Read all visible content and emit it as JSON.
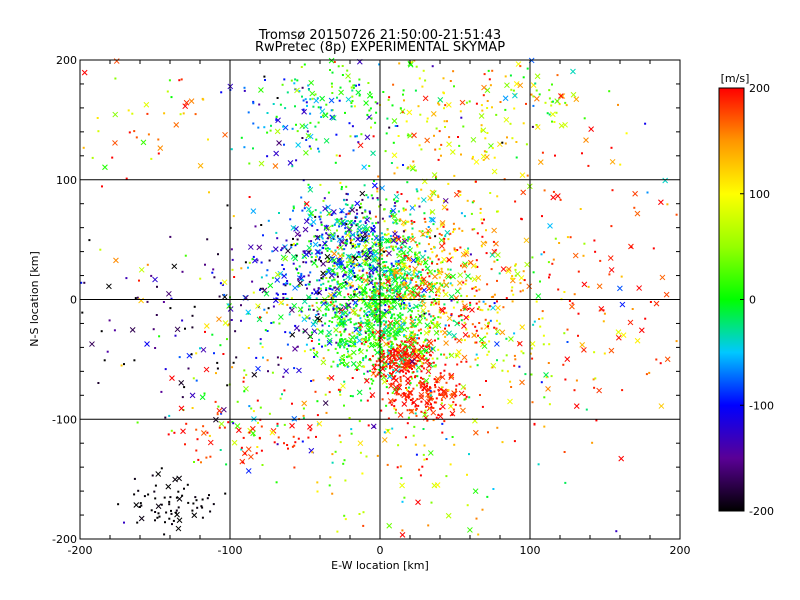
{
  "chart_data": {
    "type": "scatter",
    "title": "Tromsø 20150726 21:50:00-21:51:43",
    "subtitle": "RwPretec (8p) EXPERIMENTAL SKYMAP",
    "xlabel": "E-W location [km]",
    "ylabel": "N-S location [km]",
    "xlim": [
      -200,
      200
    ],
    "ylim": [
      -200,
      200
    ],
    "xticks": [
      "-200",
      "-100",
      "0",
      "100",
      "200"
    ],
    "yticks": [
      "-200",
      "-100",
      "0",
      "100",
      "200"
    ],
    "grid": true,
    "colorbar": {
      "label": "[m/s]",
      "range": [
        -200,
        200
      ],
      "ticks": [
        "-200",
        "-100",
        "0",
        "100",
        "200"
      ]
    },
    "marker_types": [
      "dot",
      "cross"
    ],
    "clusters": [
      {
        "x": 0,
        "y": 20,
        "sx": 22,
        "sy": 30,
        "n": 650,
        "vmean": -5,
        "vsd": 30
      },
      {
        "x": -35,
        "y": 15,
        "sx": 25,
        "sy": 28,
        "n": 350,
        "vmean": -95,
        "vsd": 60
      },
      {
        "x": 30,
        "y": 20,
        "sx": 28,
        "sy": 35,
        "n": 400,
        "vmean": 150,
        "vsd": 40
      },
      {
        "x": 0,
        "y": -30,
        "sx": 20,
        "sy": 20,
        "n": 400,
        "vmean": 5,
        "vsd": 25
      },
      {
        "x": 15,
        "y": -52,
        "sx": 10,
        "sy": 9,
        "n": 180,
        "vmean": 195,
        "vsd": 10
      },
      {
        "x": 32,
        "y": -82,
        "sx": 14,
        "sy": 11,
        "n": 170,
        "vmean": 190,
        "vsd": 15
      },
      {
        "x": -25,
        "y": 60,
        "sx": 20,
        "sy": 18,
        "n": 200,
        "vmean": -80,
        "vsd": 70
      },
      {
        "x": -50,
        "y": 150,
        "sx": 25,
        "sy": 20,
        "n": 110,
        "vmean": -60,
        "vsd": 60
      },
      {
        "x": -20,
        "y": 170,
        "sx": 25,
        "sy": 18,
        "n": 80,
        "vmean": 10,
        "vsd": 30
      },
      {
        "x": 60,
        "y": 150,
        "sx": 35,
        "sy": 30,
        "n": 150,
        "vmean": 120,
        "vsd": 50
      },
      {
        "x": 110,
        "y": 170,
        "sx": 20,
        "sy": 15,
        "n": 40,
        "vmean": 60,
        "vsd": 60
      },
      {
        "x": 60,
        "y": -20,
        "sx": 40,
        "sy": 40,
        "n": 260,
        "vmean": 90,
        "vsd": 80
      },
      {
        "x": -130,
        "y": -10,
        "sx": 40,
        "sy": 40,
        "n": 90,
        "vmean": -175,
        "vsd": 40
      },
      {
        "x": -140,
        "y": -170,
        "sx": 15,
        "sy": 13,
        "n": 70,
        "vmean": -200,
        "vsd": 5
      },
      {
        "x": -70,
        "y": -60,
        "sx": 40,
        "sy": 40,
        "n": 140,
        "vmean": 30,
        "vsd": 110
      },
      {
        "x": 130,
        "y": 0,
        "sx": 45,
        "sy": 60,
        "n": 110,
        "vmean": 185,
        "vsd": 25
      },
      {
        "x": -80,
        "y": -115,
        "sx": 30,
        "sy": 15,
        "n": 55,
        "vmean": 190,
        "vsd": 20
      },
      {
        "x": 20,
        "y": -130,
        "sx": 40,
        "sy": 35,
        "n": 70,
        "vmean": 60,
        "vsd": 80
      },
      {
        "x": -150,
        "y": 150,
        "sx": 30,
        "sy": 30,
        "n": 45,
        "vmean": 150,
        "vsd": 80
      },
      {
        "x": 0,
        "y": 0,
        "sx": 140,
        "sy": 140,
        "n": 220,
        "vmean": 50,
        "vsd": 130
      }
    ]
  }
}
